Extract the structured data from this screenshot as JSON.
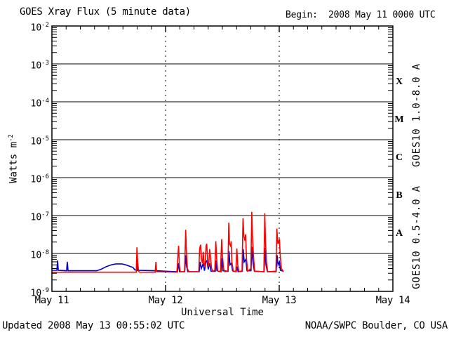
{
  "header": {
    "title": "GOES Xray Flux (5 minute data)",
    "begin": "Begin:  2008 May 11 0000 UTC"
  },
  "footer": {
    "updated": "Updated 2008 May 13 00:55:02 UTC",
    "credit": "NOAA/SWPC Boulder, CO USA"
  },
  "chart": {
    "xlabel": "Universal Time",
    "ylabel_base": "Watts m",
    "ylabel_exp": "-2",
    "y_tick_base": "10",
    "red_label": "GOES10 1.0-8.0 A",
    "blue_label": "GOES10 0.5-4.0 A",
    "colors": {
      "long_channel": "#ff0000",
      "short_channel": "#0000cc",
      "axis": "#000000",
      "background": "#ffffff"
    }
  },
  "chart_data": {
    "type": "line",
    "title": "GOES Xray Flux (5 minute data)",
    "xlabel": "Universal Time",
    "ylabel": "Watts m^-2",
    "x_unit": "hours since 2008 May 11 0000 UTC",
    "xlim": [
      0,
      72
    ],
    "ylog_lim": [
      -9,
      -2
    ],
    "grid": "solid horizontal per decade, dashed vertical per day",
    "x_ticks": [
      {
        "hour": 0,
        "label": "May 11"
      },
      {
        "hour": 24,
        "label": "May 12"
      },
      {
        "hour": 48,
        "label": "May 13"
      },
      {
        "hour": 72,
        "label": "May 14"
      }
    ],
    "minor_tick_hours_step": 3,
    "y_tick_exponents": [
      "-2",
      "-3",
      "-4",
      "-5",
      "-6",
      "-7",
      "-8",
      "-9"
    ],
    "flare_classes": [
      {
        "letter": "X",
        "log10_center": -3.5
      },
      {
        "letter": "M",
        "log10_center": -4.5
      },
      {
        "letter": "C",
        "log10_center": -5.5
      },
      {
        "letter": "B",
        "log10_center": -6.5
      },
      {
        "letter": "A",
        "log10_center": -7.5
      }
    ],
    "series": [
      {
        "name": "GOES10 1.0-8.0 A",
        "color": "#ff0000",
        "points": [
          [
            0,
            3.2e-09
          ],
          [
            17.8,
            3.2e-09
          ],
          [
            17.95,
            1.45e-08
          ],
          [
            18.1,
            6e-09
          ],
          [
            18.3,
            3.4e-09
          ],
          [
            18.5,
            3.2e-09
          ],
          [
            21.8,
            3.2e-09
          ],
          [
            21.95,
            6e-09
          ],
          [
            22.1,
            3.3e-09
          ],
          [
            26.4,
            3.2e-09
          ],
          [
            26.6,
            9e-09
          ],
          [
            26.75,
            1.6e-08
          ],
          [
            26.9,
            5e-09
          ],
          [
            27.1,
            3.3e-09
          ],
          [
            28.0,
            3.3e-09
          ],
          [
            28.25,
            4.2e-08
          ],
          [
            28.4,
            1.1e-08
          ],
          [
            28.6,
            4e-09
          ],
          [
            28.9,
            3.3e-09
          ],
          [
            31.0,
            3.3e-09
          ],
          [
            31.2,
            1.35e-08
          ],
          [
            31.4,
            1.7e-08
          ],
          [
            31.6,
            7e-09
          ],
          [
            31.8,
            5.5e-09
          ],
          [
            31.95,
            1.1e-08
          ],
          [
            32.15,
            5e-09
          ],
          [
            32.35,
            4.5e-09
          ],
          [
            32.55,
            1.6e-08
          ],
          [
            32.7,
            1.8e-08
          ],
          [
            32.9,
            5.5e-09
          ],
          [
            33.1,
            4.5e-09
          ],
          [
            33.3,
            1.3e-08
          ],
          [
            33.5,
            8e-09
          ],
          [
            33.7,
            4e-09
          ],
          [
            34.0,
            3.4e-09
          ],
          [
            34.4,
            3.6e-09
          ],
          [
            34.6,
            2.1e-08
          ],
          [
            34.8,
            7e-09
          ],
          [
            35.0,
            3.5e-09
          ],
          [
            35.6,
            3.3e-09
          ],
          [
            35.85,
            2.4e-08
          ],
          [
            36.0,
            9e-09
          ],
          [
            36.25,
            4e-09
          ],
          [
            36.5,
            3.3e-09
          ],
          [
            37.15,
            3.5e-09
          ],
          [
            37.35,
            6.5e-08
          ],
          [
            37.5,
            1.8e-08
          ],
          [
            37.7,
            1.6e-08
          ],
          [
            37.85,
            2.1e-08
          ],
          [
            38.0,
            6e-09
          ],
          [
            38.3,
            3.4e-09
          ],
          [
            38.85,
            3.4e-09
          ],
          [
            39.05,
            1.35e-08
          ],
          [
            39.25,
            5e-09
          ],
          [
            39.5,
            3.3e-09
          ],
          [
            40.15,
            3.5e-09
          ],
          [
            40.35,
            8.5e-08
          ],
          [
            40.55,
            2.8e-08
          ],
          [
            40.75,
            2.2e-08
          ],
          [
            40.9,
            3.2e-08
          ],
          [
            41.1,
            7e-09
          ],
          [
            41.35,
            3.4e-09
          ],
          [
            42.0,
            4e-09
          ],
          [
            42.2,
            1.25e-07
          ],
          [
            42.35,
            2.8e-08
          ],
          [
            42.6,
            7e-09
          ],
          [
            42.85,
            3.4e-09
          ],
          [
            44.75,
            3.3e-09
          ],
          [
            44.95,
            1.15e-07
          ],
          [
            45.1,
            2.2e-08
          ],
          [
            45.3,
            6e-09
          ],
          [
            45.55,
            3.3e-09
          ],
          [
            47.3,
            3.4e-09
          ],
          [
            47.5,
            4.5e-08
          ],
          [
            47.7,
            1.8e-08
          ],
          [
            47.9,
            2.1e-08
          ],
          [
            48.05,
            2.4e-08
          ],
          [
            48.2,
            9e-09
          ],
          [
            48.45,
            4e-09
          ],
          [
            48.9,
            3.3e-09
          ]
        ]
      },
      {
        "name": "GOES10 0.5-4.0 A",
        "color": "#0000cc",
        "points": [
          [
            0,
            3.6e-09
          ],
          [
            1.05,
            3.6e-09
          ],
          [
            1.2,
            6.5e-09
          ],
          [
            1.35,
            3.6e-09
          ],
          [
            3.1,
            3.5e-09
          ],
          [
            3.25,
            6e-09
          ],
          [
            3.4,
            3.5e-09
          ],
          [
            9.5,
            3.5e-09
          ],
          [
            10.5,
            3.9e-09
          ],
          [
            11.5,
            4.5e-09
          ],
          [
            12.5,
            5e-09
          ],
          [
            13.5,
            5.3e-09
          ],
          [
            14.8,
            5.3e-09
          ],
          [
            15.8,
            4.9e-09
          ],
          [
            16.6,
            4.5e-09
          ],
          [
            17.1,
            4.3e-09
          ],
          [
            17.5,
            3.7e-09
          ],
          [
            17.9,
            3.6e-09
          ],
          [
            17.95,
            5.5e-09
          ],
          [
            18.1,
            3.6e-09
          ],
          [
            21.9,
            3.5e-09
          ],
          [
            21.95,
            4.5e-09
          ],
          [
            22.1,
            3.5e-09
          ],
          [
            24.0,
            3.4e-09
          ],
          [
            26.5,
            3.3e-09
          ],
          [
            26.75,
            5.5e-09
          ],
          [
            26.95,
            3.3e-09
          ],
          [
            28.05,
            3.3e-09
          ],
          [
            28.25,
            9e-09
          ],
          [
            28.45,
            4.5e-09
          ],
          [
            28.7,
            3.3e-09
          ],
          [
            31.1,
            3.3e-09
          ],
          [
            31.3,
            6e-09
          ],
          [
            31.55,
            4e-09
          ],
          [
            31.95,
            5.5e-09
          ],
          [
            32.2,
            3.5e-09
          ],
          [
            32.55,
            6e-09
          ],
          [
            32.75,
            6.5e-09
          ],
          [
            33.0,
            3.8e-09
          ],
          [
            33.3,
            5.5e-09
          ],
          [
            33.6,
            3.4e-09
          ],
          [
            34.5,
            3.4e-09
          ],
          [
            34.65,
            6.5e-09
          ],
          [
            34.85,
            3.5e-09
          ],
          [
            35.7,
            3.3e-09
          ],
          [
            35.9,
            7.5e-09
          ],
          [
            36.1,
            3.5e-09
          ],
          [
            37.2,
            3.4e-09
          ],
          [
            37.4,
            1.15e-08
          ],
          [
            37.6,
            5e-09
          ],
          [
            37.9,
            5.5e-09
          ],
          [
            38.15,
            3.5e-09
          ],
          [
            38.9,
            3.3e-09
          ],
          [
            39.1,
            4.5e-09
          ],
          [
            39.3,
            3.3e-09
          ],
          [
            40.2,
            3.4e-09
          ],
          [
            40.4,
            1.3e-08
          ],
          [
            40.6,
            6e-09
          ],
          [
            40.95,
            7e-09
          ],
          [
            41.2,
            3.5e-09
          ],
          [
            42.05,
            3.5e-09
          ],
          [
            42.2,
            1.5e-08
          ],
          [
            42.45,
            6e-09
          ],
          [
            42.75,
            3.4e-09
          ],
          [
            44.8,
            3.3e-09
          ],
          [
            45.0,
            1.4e-08
          ],
          [
            45.2,
            5e-09
          ],
          [
            45.5,
            3.3e-09
          ],
          [
            47.35,
            3.3e-09
          ],
          [
            47.55,
            9e-09
          ],
          [
            47.75,
            5e-09
          ],
          [
            48.05,
            6e-09
          ],
          [
            48.25,
            3.6e-09
          ],
          [
            48.9,
            3.4e-09
          ]
        ]
      }
    ]
  }
}
